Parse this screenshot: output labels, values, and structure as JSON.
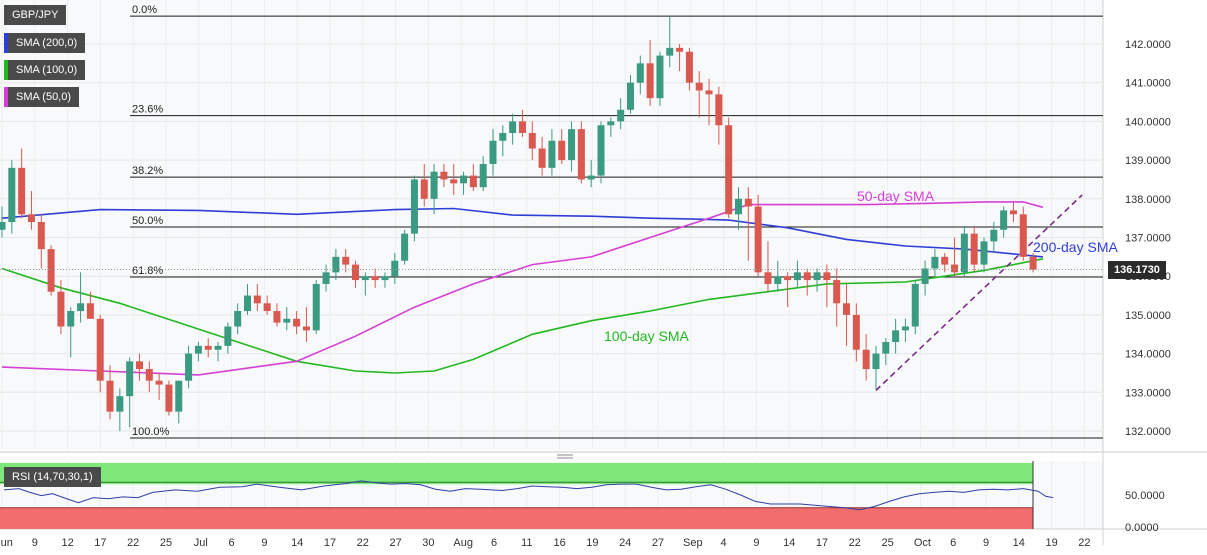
{
  "legend": {
    "symbol": "GBP/JPY",
    "sma200": {
      "label": "SMA (200,0)",
      "color": "#2f3fd6"
    },
    "sma100": {
      "label": "SMA (100,0)",
      "color": "#22b822"
    },
    "sma50": {
      "label": "SMA (50,0)",
      "color": "#d63fd6"
    },
    "rsi": {
      "label": "RSI (14,70,30,1)"
    }
  },
  "last_price": "136.1730",
  "annotations": {
    "sma50": "50-day SMA",
    "sma200": "200-day SMA",
    "sma100": "100-day SMA"
  },
  "chart_data": [
    {
      "type": "candlestick",
      "y_ticks": [
        "142.0000",
        "141.0000",
        "140.0000",
        "139.0000",
        "138.0000",
        "137.0000",
        "136.0000",
        "135.0000",
        "134.0000",
        "133.0000",
        "132.0000"
      ],
      "y_tick_values": [
        142,
        141,
        140,
        139,
        138,
        137,
        136,
        135,
        134,
        133,
        132
      ],
      "x_tick_labels": [
        "Jun",
        "9",
        "12",
        "17",
        "22",
        "25",
        "Jul",
        "6",
        "9",
        "14",
        "17",
        "22",
        "27",
        "30",
        "Aug",
        "6",
        "11",
        "16",
        "19",
        "24",
        "27",
        "Sep",
        "4",
        "9",
        "14",
        "17",
        "22",
        "25",
        "Oct",
        "6",
        "9",
        "14",
        "19",
        "22"
      ],
      "fibonacci": [
        {
          "label": "0.0%",
          "value": 142.72
        },
        {
          "label": "23.6%",
          "value": 140.15
        },
        {
          "label": "38.2%",
          "value": 138.56
        },
        {
          "label": "50.0%",
          "value": 137.27
        },
        {
          "label": "61.8%",
          "value": 135.98
        },
        {
          "label": "100.0%",
          "value": 131.82
        }
      ],
      "candles": [
        [
          137.2,
          137.8,
          137.0,
          137.4
        ],
        [
          137.4,
          139.0,
          137.1,
          138.8
        ],
        [
          138.8,
          139.3,
          137.5,
          137.6
        ],
        [
          137.6,
          138.2,
          137.2,
          137.4
        ],
        [
          137.4,
          137.6,
          136.2,
          136.7
        ],
        [
          136.7,
          136.8,
          135.5,
          135.6
        ],
        [
          135.6,
          135.9,
          134.5,
          134.7
        ],
        [
          134.7,
          135.2,
          133.9,
          135.1
        ],
        [
          135.1,
          136.1,
          134.8,
          135.3
        ],
        [
          135.3,
          135.6,
          134.9,
          134.9
        ],
        [
          134.9,
          135.0,
          133.0,
          133.3
        ],
        [
          133.3,
          133.7,
          132.3,
          132.5
        ],
        [
          132.5,
          133.1,
          132.0,
          132.9
        ],
        [
          132.9,
          133.9,
          132.1,
          133.8
        ],
        [
          133.8,
          134.0,
          133.3,
          133.6
        ],
        [
          133.6,
          133.8,
          133.0,
          133.3
        ],
        [
          133.3,
          133.5,
          132.8,
          133.2
        ],
        [
          133.2,
          133.3,
          132.4,
          132.5
        ],
        [
          132.5,
          133.3,
          132.2,
          133.3
        ],
        [
          133.3,
          134.2,
          133.1,
          134.0
        ],
        [
          134.0,
          134.3,
          133.8,
          134.2
        ],
        [
          134.2,
          134.4,
          133.9,
          134.1
        ],
        [
          134.1,
          134.3,
          133.8,
          134.2
        ],
        [
          134.2,
          134.8,
          134.0,
          134.7
        ],
        [
          134.7,
          135.3,
          134.5,
          135.1
        ],
        [
          135.1,
          135.8,
          135.0,
          135.5
        ],
        [
          135.5,
          135.8,
          135.1,
          135.3
        ],
        [
          135.3,
          135.5,
          135.0,
          135.1
        ],
        [
          135.1,
          135.3,
          134.7,
          134.8
        ],
        [
          134.8,
          135.2,
          134.6,
          134.9
        ],
        [
          134.9,
          135.1,
          134.5,
          134.7
        ],
        [
          134.7,
          135.2,
          134.3,
          134.6
        ],
        [
          134.6,
          135.9,
          134.5,
          135.8
        ],
        [
          135.8,
          136.3,
          135.6,
          136.1
        ],
        [
          136.1,
          136.7,
          135.9,
          136.5
        ],
        [
          136.5,
          136.7,
          136.1,
          136.3
        ],
        [
          136.3,
          136.4,
          135.7,
          135.9
        ],
        [
          135.9,
          136.1,
          135.5,
          136.0
        ],
        [
          136.0,
          136.2,
          135.7,
          135.9
        ],
        [
          135.9,
          136.1,
          135.7,
          136.0
        ],
        [
          136.0,
          136.6,
          135.8,
          136.4
        ],
        [
          136.4,
          137.2,
          136.3,
          137.1
        ],
        [
          137.1,
          138.6,
          136.9,
          138.5
        ],
        [
          138.5,
          138.9,
          137.8,
          138.0
        ],
        [
          138.0,
          138.9,
          137.6,
          138.7
        ],
        [
          138.7,
          138.9,
          138.3,
          138.5
        ],
        [
          138.5,
          138.9,
          138.1,
          138.4
        ],
        [
          138.4,
          138.7,
          138.1,
          138.6
        ],
        [
          138.6,
          138.9,
          138.2,
          138.3
        ],
        [
          138.3,
          139.1,
          138.2,
          138.9
        ],
        [
          138.9,
          139.8,
          138.6,
          139.5
        ],
        [
          139.5,
          139.9,
          139.1,
          139.7
        ],
        [
          139.7,
          140.2,
          139.4,
          140.0
        ],
        [
          140.0,
          140.3,
          139.6,
          139.7
        ],
        [
          139.7,
          140.0,
          139.0,
          139.3
        ],
        [
          139.3,
          139.6,
          138.6,
          138.8
        ],
        [
          138.8,
          139.8,
          138.6,
          139.5
        ],
        [
          139.5,
          139.8,
          138.9,
          139.0
        ],
        [
          139.0,
          140.0,
          138.7,
          139.8
        ],
        [
          139.8,
          140.0,
          138.4,
          138.5
        ],
        [
          138.5,
          139.0,
          138.3,
          138.6
        ],
        [
          138.6,
          140.0,
          138.4,
          139.9
        ],
        [
          139.9,
          140.1,
          139.6,
          140.0
        ],
        [
          140.0,
          140.6,
          139.8,
          140.3
        ],
        [
          140.3,
          141.2,
          140.2,
          141.0
        ],
        [
          141.0,
          141.7,
          140.7,
          141.5
        ],
        [
          141.5,
          142.1,
          140.4,
          140.6
        ],
        [
          140.6,
          141.8,
          140.4,
          141.7
        ],
        [
          141.7,
          142.72,
          141.4,
          141.9
        ],
        [
          141.9,
          142.0,
          141.3,
          141.8
        ],
        [
          141.8,
          141.9,
          140.8,
          141.0
        ],
        [
          141.0,
          141.3,
          140.1,
          140.8
        ],
        [
          140.8,
          141.1,
          139.9,
          140.7
        ],
        [
          140.7,
          140.9,
          139.4,
          139.9
        ],
        [
          139.9,
          140.1,
          137.5,
          137.6
        ],
        [
          137.6,
          138.3,
          137.2,
          138.0
        ],
        [
          138.0,
          138.3,
          136.4,
          137.8
        ],
        [
          137.8,
          138.1,
          136.0,
          136.1
        ],
        [
          136.1,
          136.9,
          135.6,
          135.8
        ],
        [
          135.8,
          136.4,
          135.6,
          136.0
        ],
        [
          136.0,
          136.1,
          135.2,
          135.9
        ],
        [
          135.9,
          136.4,
          135.7,
          136.1
        ],
        [
          136.1,
          136.2,
          135.5,
          135.9
        ],
        [
          135.9,
          136.2,
          135.6,
          136.1
        ],
        [
          136.1,
          136.3,
          135.2,
          135.9
        ],
        [
          135.9,
          136.2,
          134.7,
          135.3
        ],
        [
          135.3,
          135.8,
          134.2,
          135.0
        ],
        [
          135.0,
          135.3,
          133.8,
          134.1
        ],
        [
          134.1,
          134.5,
          133.3,
          133.6
        ],
        [
          133.6,
          134.2,
          133.08,
          134.0
        ],
        [
          134.0,
          134.4,
          133.7,
          134.3
        ],
        [
          134.3,
          134.9,
          134.0,
          134.6
        ],
        [
          134.6,
          134.9,
          134.3,
          134.7
        ],
        [
          134.7,
          135.9,
          134.5,
          135.8
        ],
        [
          135.8,
          136.4,
          135.5,
          136.2
        ],
        [
          136.2,
          136.7,
          136.0,
          136.5
        ],
        [
          136.5,
          136.6,
          136.1,
          136.3
        ],
        [
          136.3,
          137.0,
          136.0,
          136.1
        ],
        [
          136.1,
          137.3,
          136.0,
          137.1
        ],
        [
          137.1,
          137.3,
          136.1,
          136.3
        ],
        [
          136.3,
          137.0,
          136.1,
          136.9
        ],
        [
          136.9,
          137.4,
          136.6,
          137.2
        ],
        [
          137.2,
          137.8,
          137.0,
          137.7
        ],
        [
          137.7,
          137.9,
          137.4,
          137.6
        ],
        [
          137.6,
          137.8,
          136.4,
          136.5
        ],
        [
          136.5,
          136.6,
          136.1,
          136.17
        ]
      ],
      "sma50": [
        [
          0,
          133.65
        ],
        [
          10,
          133.55
        ],
        [
          20,
          133.45
        ],
        [
          30,
          133.8
        ],
        [
          36,
          134.45
        ],
        [
          42,
          135.2
        ],
        [
          48,
          135.8
        ],
        [
          54,
          136.3
        ],
        [
          60,
          136.5
        ],
        [
          66,
          137.0
        ],
        [
          72,
          137.5
        ],
        [
          76,
          137.85
        ],
        [
          82,
          137.85
        ],
        [
          88,
          137.85
        ],
        [
          94,
          137.88
        ],
        [
          100,
          137.92
        ],
        [
          104,
          137.92
        ],
        [
          106,
          137.78
        ]
      ],
      "sma100": [
        [
          0,
          136.2
        ],
        [
          6,
          135.7
        ],
        [
          12,
          135.3
        ],
        [
          18,
          134.8
        ],
        [
          24,
          134.3
        ],
        [
          30,
          133.8
        ],
        [
          36,
          133.55
        ],
        [
          40,
          133.5
        ],
        [
          44,
          133.55
        ],
        [
          48,
          133.85
        ],
        [
          54,
          134.5
        ],
        [
          60,
          134.85
        ],
        [
          66,
          135.1
        ],
        [
          72,
          135.4
        ],
        [
          78,
          135.6
        ],
        [
          84,
          135.8
        ],
        [
          92,
          135.85
        ],
        [
          96,
          136.0
        ],
        [
          100,
          136.15
        ],
        [
          104,
          136.35
        ],
        [
          106,
          136.45
        ]
      ],
      "sma200": [
        [
          0,
          137.5
        ],
        [
          10,
          137.72
        ],
        [
          20,
          137.7
        ],
        [
          30,
          137.6
        ],
        [
          40,
          137.72
        ],
        [
          46,
          137.75
        ],
        [
          52,
          137.58
        ],
        [
          60,
          137.55
        ],
        [
          66,
          137.5
        ],
        [
          70,
          137.48
        ],
        [
          74,
          137.45
        ],
        [
          80,
          137.25
        ],
        [
          86,
          136.95
        ],
        [
          92,
          136.78
        ],
        [
          98,
          136.7
        ],
        [
          104,
          136.55
        ],
        [
          106,
          136.5
        ]
      ],
      "trendline": [
        [
          89,
          133.05
        ],
        [
          110,
          138.1
        ]
      ]
    },
    {
      "type": "line",
      "y_ticks": [
        "50.0000",
        "0.0000"
      ],
      "y_tick_values": [
        50,
        0
      ],
      "levels": [
        70,
        30
      ],
      "series": [
        {
          "values": [
            [
              0,
              58
            ],
            [
              4,
              60
            ],
            [
              7,
              54
            ],
            [
              10,
              49
            ],
            [
              13,
              52
            ],
            [
              16,
              46
            ],
            [
              20,
              38
            ],
            [
              24,
              46
            ],
            [
              28,
              44
            ],
            [
              32,
              47
            ],
            [
              36,
              46
            ],
            [
              40,
              54
            ],
            [
              46,
              58
            ],
            [
              52,
              56
            ],
            [
              58,
              62
            ],
            [
              64,
              63
            ],
            [
              68,
              67
            ],
            [
              74,
              62
            ],
            [
              80,
              58
            ],
            [
              86,
              64
            ],
            [
              92,
              68
            ],
            [
              96,
              72
            ],
            [
              100,
              69
            ],
            [
              104,
              67
            ],
            [
              108,
              68
            ],
            [
              112,
              66
            ],
            [
              116,
              59
            ],
            [
              120,
              56
            ],
            [
              124,
              60
            ],
            [
              128,
              59
            ],
            [
              134,
              57
            ],
            [
              138,
              60
            ],
            [
              142,
              64
            ],
            [
              146,
              63
            ],
            [
              150,
              62
            ],
            [
              154,
              60
            ],
            [
              158,
              62
            ],
            [
              162,
              66
            ],
            [
              166,
              67
            ],
            [
              170,
              67
            ],
            [
              174,
              62
            ],
            [
              178,
              58
            ],
            [
              182,
              59
            ],
            [
              186,
              63
            ],
            [
              190,
              66
            ],
            [
              194,
              59
            ],
            [
              198,
              50
            ],
            [
              202,
              40
            ],
            [
              206,
              36
            ],
            [
              210,
              36
            ],
            [
              214,
              36
            ],
            [
              218,
              34
            ],
            [
              222,
              32
            ],
            [
              226,
              30
            ],
            [
              230,
              27
            ],
            [
              234,
              32
            ],
            [
              238,
              40
            ],
            [
              242,
              47
            ],
            [
              246,
              52
            ],
            [
              250,
              54
            ],
            [
              254,
              56
            ],
            [
              258,
              54
            ],
            [
              262,
              58
            ],
            [
              266,
              59
            ],
            [
              270,
              58
            ],
            [
              274,
              60
            ],
            [
              278,
              56
            ],
            [
              280,
              48
            ],
            [
              282,
              46
            ]
          ]
        }
      ]
    }
  ]
}
